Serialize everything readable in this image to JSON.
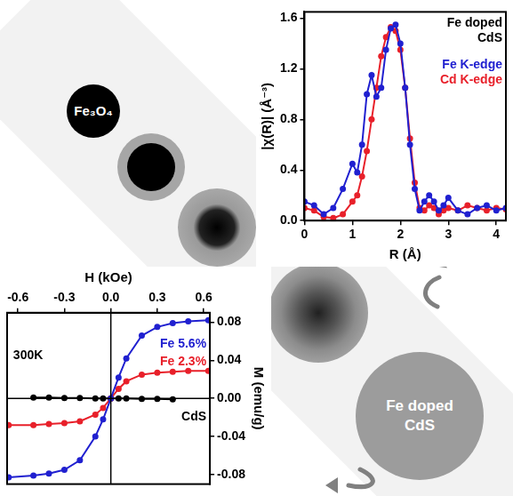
{
  "chart_data": [
    {
      "type": "line",
      "x_label": "R (Å)",
      "y_label": "|χ(R)| (Å⁻³)",
      "annotations": [
        "Fe doped CdS"
      ],
      "x": [
        0,
        0.2,
        0.4,
        0.6,
        0.8,
        1.0,
        1.1,
        1.2,
        1.3,
        1.4,
        1.5,
        1.6,
        1.7,
        1.8,
        1.9,
        2.0,
        2.1,
        2.2,
        2.3,
        2.4,
        2.5,
        2.6,
        2.7,
        2.8,
        2.9,
        3.0,
        3.2,
        3.4,
        3.6,
        3.8,
        4.0,
        4.2
      ],
      "series": [
        {
          "name": "Fe K-edge",
          "color": "#2020d0",
          "marker": "circle",
          "values": [
            0.15,
            0.12,
            0.05,
            0.1,
            0.25,
            0.45,
            0.38,
            0.6,
            1.0,
            1.15,
            0.98,
            1.05,
            1.35,
            1.52,
            1.55,
            1.4,
            1.05,
            0.6,
            0.25,
            0.08,
            0.15,
            0.2,
            0.15,
            0.08,
            0.12,
            0.18,
            0.08,
            0.05,
            0.1,
            0.12,
            0.08,
            0.1
          ]
        },
        {
          "name": "Cd K-edge",
          "color": "#e8202a",
          "marker": "circle",
          "values": [
            0.1,
            0.08,
            0.03,
            0.02,
            0.05,
            0.15,
            0.2,
            0.35,
            0.55,
            0.8,
            1.05,
            1.3,
            1.45,
            1.53,
            1.5,
            1.35,
            1.05,
            0.65,
            0.3,
            0.1,
            0.08,
            0.12,
            0.1,
            0.05,
            0.08,
            0.1,
            0.08,
            0.12,
            0.1,
            0.08,
            0.1,
            0.09
          ]
        }
      ],
      "xlim": [
        0,
        4.2
      ],
      "xticks": [
        0,
        1,
        2,
        3,
        4
      ],
      "ylim": [
        0,
        1.65
      ],
      "yticks": [
        {
          "value": 0,
          "label": "0.0"
        },
        0.4,
        0.8,
        1.2,
        1.6
      ],
      "grid": false,
      "legend": "top-right"
    },
    {
      "type": "line",
      "x_label": "H (kOe)",
      "y_label": "M (emu/g)",
      "annotations": [
        "300K"
      ],
      "x": [
        -0.66,
        -0.5,
        -0.4,
        -0.3,
        -0.2,
        -0.1,
        -0.05,
        0,
        0.05,
        0.1,
        0.2,
        0.3,
        0.4,
        0.5,
        0.63
      ],
      "series": [
        {
          "name": "Fe 5.6%",
          "color": "#2020d0",
          "marker": "circle",
          "values": [
            -0.083,
            -0.081,
            -0.079,
            -0.075,
            -0.065,
            -0.04,
            -0.022,
            0,
            0.022,
            0.042,
            0.066,
            0.075,
            0.079,
            0.081,
            0.082
          ]
        },
        {
          "name": "Fe 2.3%",
          "color": "#e8202a",
          "marker": "circle",
          "values": [
            -0.028,
            -0.028,
            -0.027,
            -0.026,
            -0.024,
            -0.017,
            -0.01,
            0,
            0.01,
            0.018,
            0.025,
            0.027,
            0.028,
            0.029,
            0.029
          ]
        },
        {
          "name": "CdS",
          "color": "#000000",
          "marker": "circle",
          "values": [
            null,
            0.001,
            0.001,
            0.0005,
            0.0005,
            0,
            0,
            0,
            0,
            0,
            -0.0005,
            -0.0005,
            -0.001,
            null,
            null
          ]
        }
      ],
      "xlim": [
        -0.67,
        0.64
      ],
      "xticks": [
        -0.6,
        -0.3,
        {
          "value": 0,
          "label": "0.0"
        },
        0.3,
        0.6
      ],
      "ylim": [
        -0.09,
        0.09
      ],
      "yticks": [
        -0.08,
        -0.04,
        {
          "value": 0,
          "label": "0.00"
        },
        0.04,
        0.08
      ],
      "grid": false,
      "legend": "right"
    }
  ],
  "diagram": {
    "labels": [
      "Fe₃O₄",
      "Fe doped CdS"
    ]
  }
}
